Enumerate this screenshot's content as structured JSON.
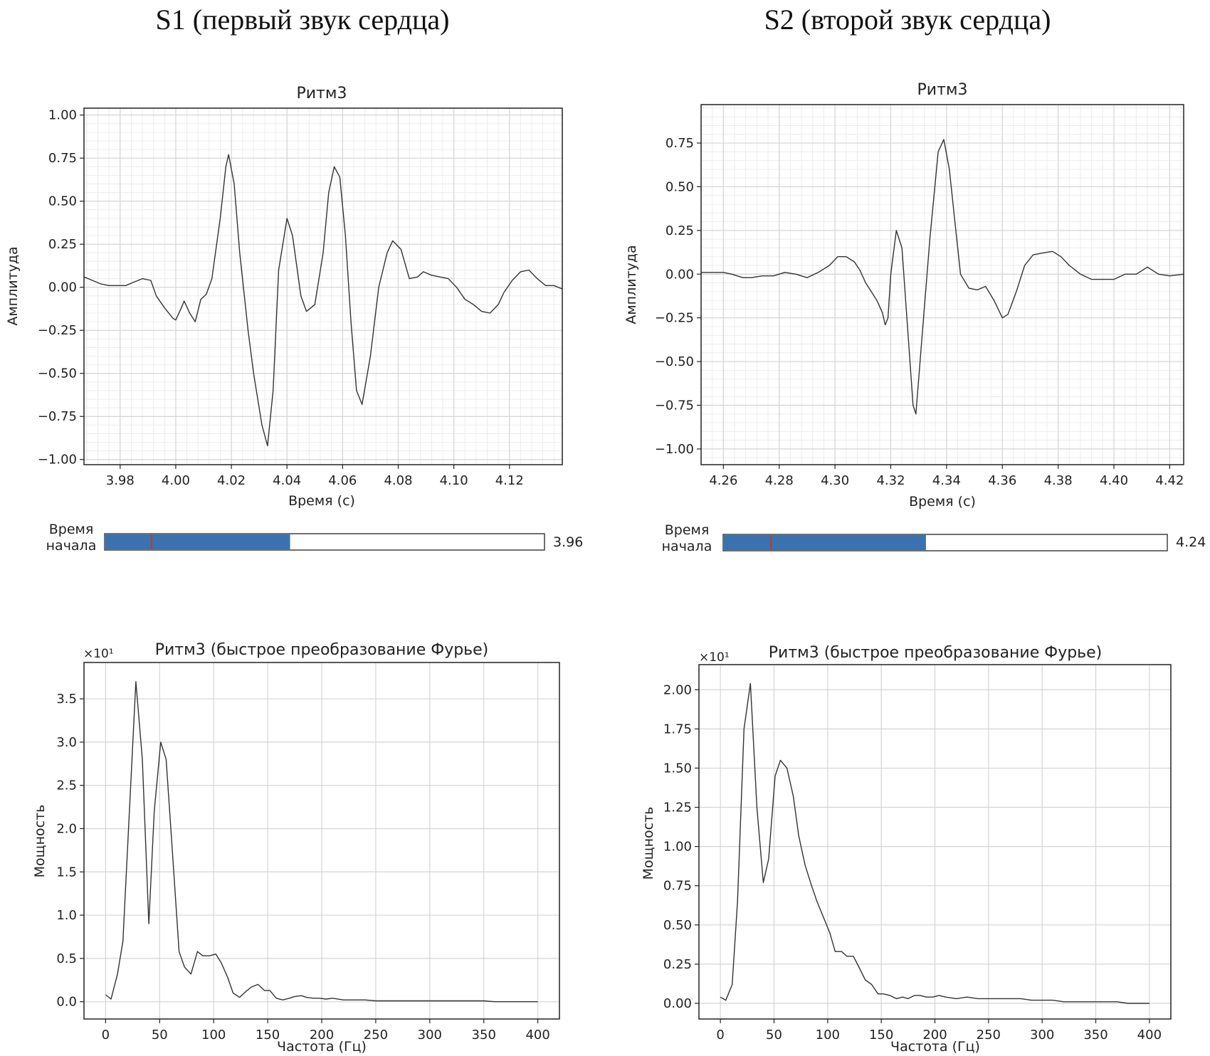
{
  "headings": {
    "s1": "S1 (первый звук сердца)",
    "s2": "S2 (второй звук сердца)"
  },
  "sliders": [
    {
      "label_line1": "Время",
      "label_line2": "начала",
      "value": "3.96",
      "fill_fraction": 0.42,
      "marker_fraction": 0.107,
      "fill_color": "#3a72b0",
      "marker_color": "#c0392b"
    },
    {
      "label_line1": "Время",
      "label_line2": "начала",
      "value": "4.24",
      "fill_fraction": 0.455,
      "marker_fraction": 0.108,
      "fill_color": "#3a72b0",
      "marker_color": "#c0392b"
    }
  ],
  "chart_data": [
    {
      "id": "s1-time",
      "type": "line",
      "title": "Ритм3",
      "xlabel": "Время (с)",
      "ylabel": "Амплитуда",
      "xlim": [
        3.967,
        4.139
      ],
      "ylim": [
        -1.03,
        1.04
      ],
      "xticks": [
        3.98,
        4.0,
        4.02,
        4.04,
        4.06,
        4.08,
        4.1,
        4.12
      ],
      "xtick_labels": [
        "3.98",
        "4.00",
        "4.02",
        "4.04",
        "4.06",
        "4.08",
        "4.10",
        "4.12"
      ],
      "yticks": [
        1.0,
        0.75,
        0.5,
        0.25,
        0.0,
        -0.25,
        -0.5,
        -0.75,
        -1.0
      ],
      "ytick_labels": [
        "1.00",
        "0.75",
        "0.50",
        "0.25",
        "0.00",
        "−0.25",
        "−0.50",
        "−0.75",
        "−1.00"
      ],
      "grid": "minor",
      "line_color": "#333333",
      "x": [
        3.967,
        3.97,
        3.973,
        3.976,
        3.979,
        3.982,
        3.985,
        3.988,
        3.991,
        3.993,
        3.996,
        3.999,
        4.0,
        4.002,
        4.003,
        4.005,
        4.007,
        4.009,
        4.011,
        4.013,
        4.016,
        4.018,
        4.019,
        4.021,
        4.023,
        4.026,
        4.028,
        4.031,
        4.033,
        4.035,
        4.037,
        4.04,
        4.042,
        4.045,
        4.047,
        4.05,
        4.053,
        4.055,
        4.057,
        4.059,
        4.061,
        4.063,
        4.065,
        4.067,
        4.07,
        4.073,
        4.076,
        4.078,
        4.081,
        4.084,
        4.087,
        4.089,
        4.092,
        4.095,
        4.098,
        4.101,
        4.104,
        4.107,
        4.11,
        4.113,
        4.116,
        4.118,
        4.121,
        4.124,
        4.127,
        4.13,
        4.133,
        4.136,
        4.139
      ],
      "y": [
        0.06,
        0.04,
        0.02,
        0.01,
        0.01,
        0.01,
        0.03,
        0.05,
        0.04,
        -0.05,
        -0.12,
        -0.18,
        -0.19,
        -0.12,
        -0.08,
        -0.15,
        -0.2,
        -0.07,
        -0.04,
        0.05,
        0.4,
        0.7,
        0.77,
        0.6,
        0.2,
        -0.25,
        -0.5,
        -0.8,
        -0.92,
        -0.6,
        0.1,
        0.4,
        0.3,
        -0.05,
        -0.14,
        -0.1,
        0.2,
        0.55,
        0.7,
        0.64,
        0.3,
        -0.2,
        -0.6,
        -0.68,
        -0.4,
        0.0,
        0.2,
        0.27,
        0.22,
        0.05,
        0.06,
        0.09,
        0.07,
        0.06,
        0.05,
        0.0,
        -0.07,
        -0.1,
        -0.14,
        -0.15,
        -0.1,
        -0.03,
        0.04,
        0.09,
        0.1,
        0.05,
        0.01,
        0.01,
        -0.01
      ]
    },
    {
      "id": "s2-time",
      "type": "line",
      "title": "Ритм3",
      "xlabel": "Время (с)",
      "ylabel": "Амплитуда",
      "xlim": [
        4.252,
        4.425
      ],
      "ylim": [
        -1.09,
        0.97
      ],
      "xticks": [
        4.26,
        4.28,
        4.3,
        4.32,
        4.34,
        4.36,
        4.38,
        4.4,
        4.42
      ],
      "xtick_labels": [
        "4.26",
        "4.28",
        "4.30",
        "4.32",
        "4.34",
        "4.36",
        "4.38",
        "4.40",
        "4.42"
      ],
      "yticks": [
        0.75,
        0.5,
        0.25,
        0.0,
        -0.25,
        -0.5,
        -0.75,
        -1.0
      ],
      "ytick_labels": [
        "0.75",
        "0.50",
        "0.25",
        "0.00",
        "−0.25",
        "−0.50",
        "−0.75",
        "−1.00"
      ],
      "grid": "minor",
      "line_color": "#333333",
      "x": [
        4.252,
        4.256,
        4.26,
        4.263,
        4.267,
        4.27,
        4.274,
        4.278,
        4.282,
        4.286,
        4.29,
        4.294,
        4.298,
        4.301,
        4.304,
        4.307,
        4.309,
        4.311,
        4.313,
        4.315,
        4.317,
        4.318,
        4.319,
        4.32,
        4.322,
        4.324,
        4.326,
        4.328,
        4.329,
        4.331,
        4.334,
        4.337,
        4.339,
        4.341,
        4.343,
        4.345,
        4.348,
        4.351,
        4.354,
        4.357,
        4.36,
        4.362,
        4.365,
        4.368,
        4.371,
        4.374,
        4.378,
        4.381,
        4.384,
        4.388,
        4.392,
        4.396,
        4.4,
        4.404,
        4.408,
        4.412,
        4.416,
        4.42,
        4.425
      ],
      "y": [
        0.01,
        0.01,
        0.01,
        0.0,
        -0.02,
        -0.02,
        -0.01,
        -0.01,
        0.01,
        0.0,
        -0.02,
        0.01,
        0.05,
        0.1,
        0.1,
        0.07,
        0.02,
        -0.05,
        -0.1,
        -0.15,
        -0.22,
        -0.29,
        -0.25,
        0.0,
        0.25,
        0.15,
        -0.3,
        -0.75,
        -0.8,
        -0.4,
        0.2,
        0.7,
        0.77,
        0.6,
        0.3,
        0.0,
        -0.08,
        -0.09,
        -0.07,
        -0.15,
        -0.25,
        -0.23,
        -0.1,
        0.05,
        0.11,
        0.12,
        0.13,
        0.1,
        0.05,
        0.0,
        -0.03,
        -0.03,
        -0.03,
        0.0,
        0.0,
        0.04,
        0.0,
        -0.01,
        0.0
      ]
    },
    {
      "id": "s1-fft",
      "type": "line",
      "title": "Ритм3 (быстрое преобразование Фурье)",
      "xlabel": "Частота (Гц)",
      "ylabel": "Мощность",
      "scale_label": "×10¹",
      "xlim": [
        -20,
        420
      ],
      "ylim": [
        -0.2,
        3.92
      ],
      "xticks": [
        0,
        50,
        100,
        150,
        200,
        250,
        300,
        350,
        400
      ],
      "xtick_labels": [
        "0",
        "50",
        "100",
        "150",
        "200",
        "250",
        "300",
        "350",
        "400"
      ],
      "yticks": [
        0.0,
        0.5,
        1.0,
        1.5,
        2.0,
        2.5,
        3.0,
        3.5
      ],
      "ytick_labels": [
        "0.0",
        "0.5",
        "1.0",
        "1.5",
        "2.0",
        "2.5",
        "3.0",
        "3.5"
      ],
      "grid": "major",
      "line_color": "#333333",
      "x": [
        0,
        5,
        11,
        16,
        22,
        28,
        34,
        40,
        45,
        51,
        56,
        62,
        68,
        73,
        79,
        85,
        90,
        96,
        102,
        107,
        113,
        118,
        124,
        130,
        135,
        141,
        147,
        152,
        158,
        164,
        170,
        175,
        181,
        186,
        192,
        198,
        204,
        210,
        220,
        230,
        240,
        250,
        260,
        270,
        280,
        290,
        300,
        310,
        320,
        330,
        340,
        350,
        360,
        370,
        380,
        390,
        400
      ],
      "y": [
        0.08,
        0.03,
        0.32,
        0.7,
        2.2,
        3.7,
        2.8,
        0.9,
        2.2,
        3.0,
        2.8,
        1.7,
        0.58,
        0.4,
        0.32,
        0.58,
        0.53,
        0.53,
        0.55,
        0.45,
        0.28,
        0.1,
        0.05,
        0.12,
        0.17,
        0.2,
        0.13,
        0.13,
        0.04,
        0.02,
        0.04,
        0.06,
        0.07,
        0.05,
        0.04,
        0.04,
        0.03,
        0.04,
        0.02,
        0.02,
        0.02,
        0.01,
        0.01,
        0.01,
        0.01,
        0.01,
        0.01,
        0.01,
        0.01,
        0.01,
        0.01,
        0.01,
        0.0,
        0.0,
        0.0,
        0.0,
        0.0
      ]
    },
    {
      "id": "s2-fft",
      "type": "line",
      "title": "Ритм3 (быстрое преобразование Фурье)",
      "xlabel": "Частота (Гц)",
      "ylabel": "Мощность",
      "scale_label": "×10¹",
      "xlim": [
        -20,
        420
      ],
      "ylim": [
        -0.1,
        2.16
      ],
      "xticks": [
        0,
        50,
        100,
        150,
        200,
        250,
        300,
        350,
        400
      ],
      "xtick_labels": [
        "0",
        "50",
        "100",
        "150",
        "200",
        "250",
        "300",
        "350",
        "400"
      ],
      "yticks": [
        0.0,
        0.25,
        0.5,
        0.75,
        1.0,
        1.25,
        1.5,
        1.75,
        2.0
      ],
      "ytick_labels": [
        "0.00",
        "0.25",
        "0.50",
        "0.75",
        "1.00",
        "1.25",
        "1.50",
        "1.75",
        "2.00"
      ],
      "grid": "major",
      "line_color": "#333333",
      "x": [
        0,
        5,
        11,
        16,
        22,
        28,
        34,
        40,
        45,
        51,
        56,
        62,
        68,
        73,
        79,
        85,
        90,
        96,
        102,
        107,
        113,
        118,
        124,
        130,
        135,
        141,
        147,
        152,
        158,
        164,
        170,
        175,
        181,
        186,
        192,
        198,
        204,
        210,
        220,
        230,
        240,
        250,
        260,
        270,
        280,
        290,
        300,
        310,
        320,
        330,
        340,
        350,
        360,
        370,
        380,
        390,
        400
      ],
      "y": [
        0.04,
        0.02,
        0.12,
        0.65,
        1.75,
        2.04,
        1.25,
        0.77,
        0.92,
        1.45,
        1.55,
        1.5,
        1.32,
        1.07,
        0.88,
        0.75,
        0.65,
        0.55,
        0.45,
        0.33,
        0.33,
        0.3,
        0.3,
        0.22,
        0.15,
        0.12,
        0.06,
        0.06,
        0.05,
        0.03,
        0.04,
        0.03,
        0.05,
        0.05,
        0.04,
        0.04,
        0.05,
        0.04,
        0.03,
        0.04,
        0.03,
        0.03,
        0.03,
        0.03,
        0.03,
        0.02,
        0.02,
        0.02,
        0.01,
        0.01,
        0.01,
        0.01,
        0.01,
        0.01,
        0.0,
        0.0,
        0.0
      ]
    }
  ]
}
